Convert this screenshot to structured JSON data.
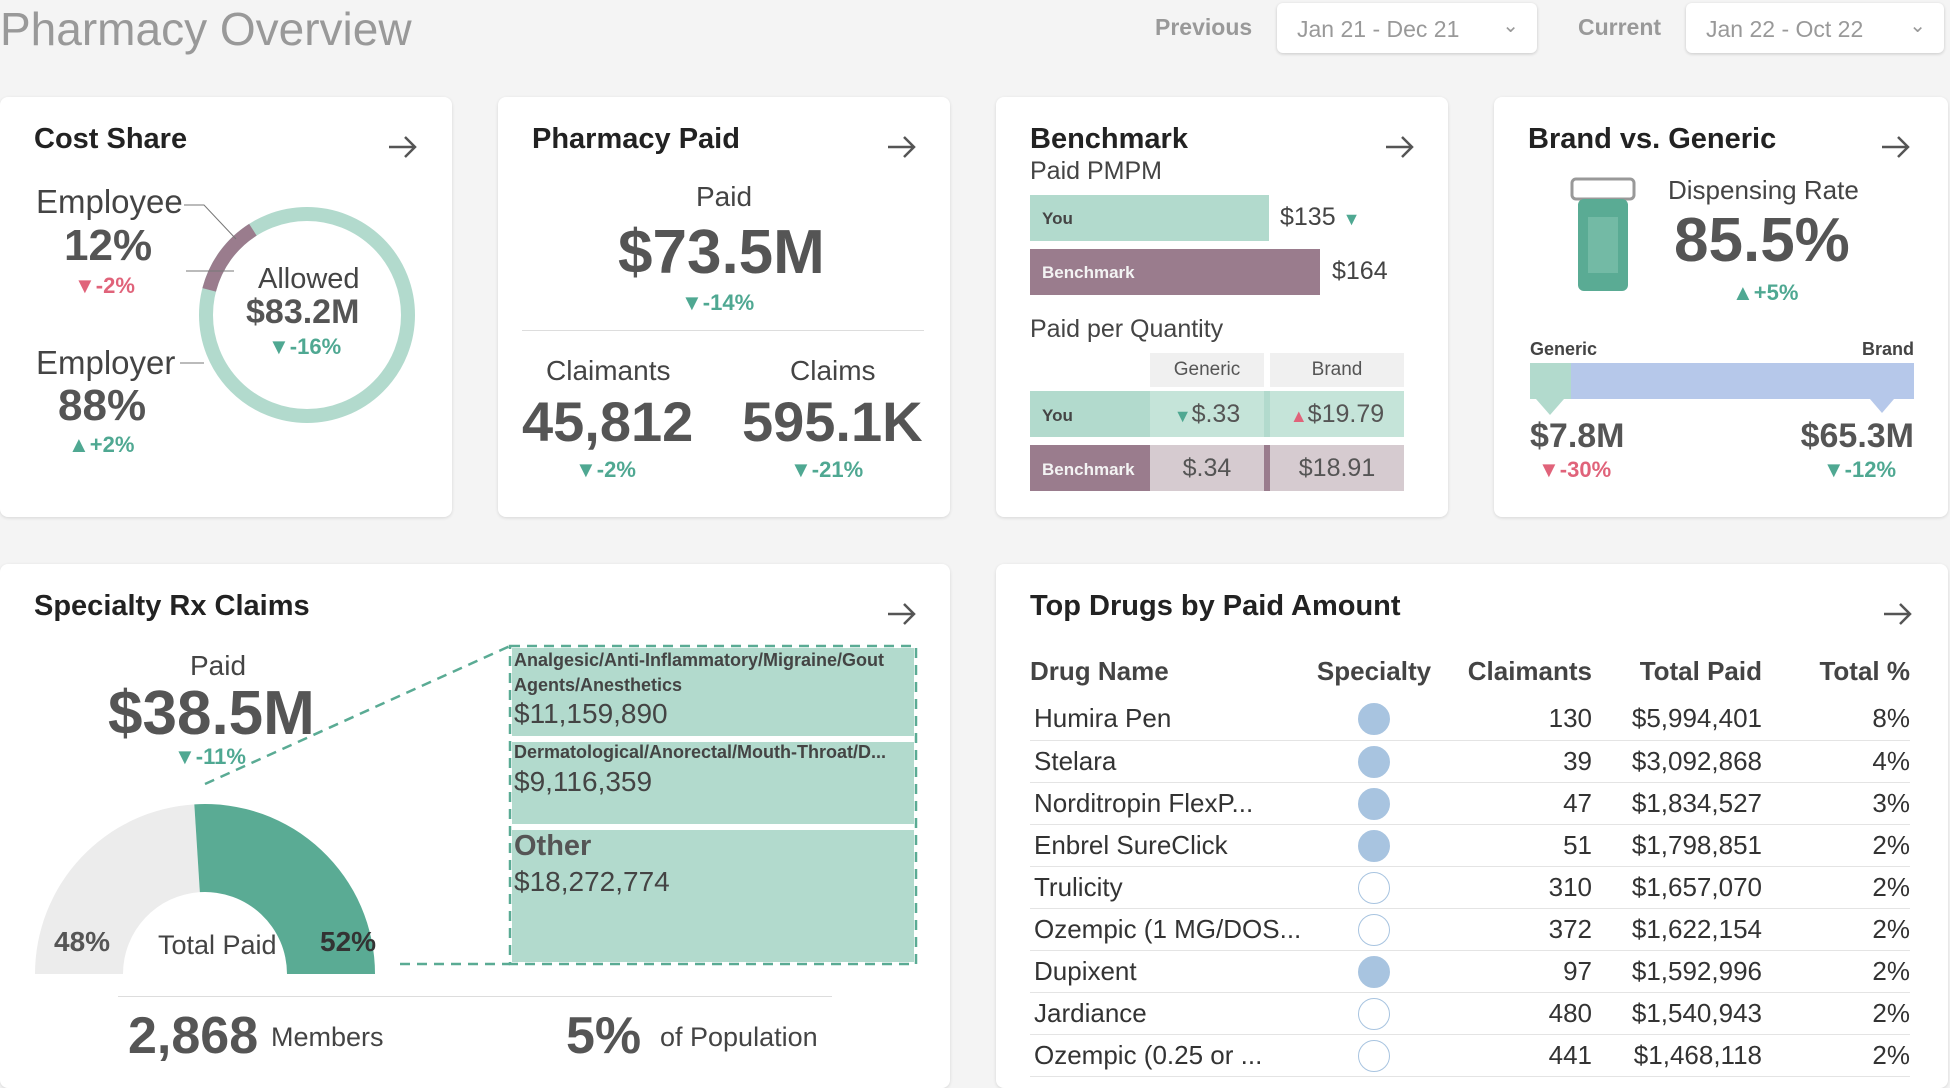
{
  "page": {
    "title": "Pharmacy Overview",
    "previous_label": "Previous",
    "previous_range": "Jan 21 - Dec 21",
    "current_label": "Current",
    "current_range": "Jan 22 - Oct 22"
  },
  "colors": {
    "teal": "#b2dacd",
    "teal_dark": "#5aab94",
    "mauve": "#9a7c8d",
    "blue_bar": "#b6c8ea",
    "positive": "#4fa892",
    "negative": "#e0637a"
  },
  "cost_share": {
    "title": "Cost Share",
    "employee_label": "Employee",
    "employee_pct": "12%",
    "employee_change": "-2%",
    "employer_label": "Employer",
    "employer_pct": "88%",
    "employer_change": "+2%",
    "allowed_label": "Allowed",
    "allowed_value": "$83.2M",
    "allowed_change": "-16%",
    "employee_share": 0.12
  },
  "pharmacy_paid": {
    "title": "Pharmacy Paid",
    "paid_label": "Paid",
    "paid_value": "$73.5M",
    "paid_change": "-14%",
    "claimants_label": "Claimants",
    "claimants_value": "45,812",
    "claimants_change": "-2%",
    "claims_label": "Claims",
    "claims_value": "595.1K",
    "claims_change": "-21%"
  },
  "benchmark": {
    "title": "Benchmark",
    "subtitle": "Paid PMPM",
    "you_label": "You",
    "you_value": "$135",
    "you_amount": 135,
    "benchmark_label": "Benchmark",
    "benchmark_value": "$164",
    "benchmark_amount": 164,
    "ppq_title": "Paid per Quantity",
    "col_generic": "Generic",
    "col_brand": "Brand",
    "you_generic": "$.33",
    "you_brand": "$19.79",
    "bench_generic": "$.34",
    "bench_brand": "$18.91"
  },
  "brand_generic": {
    "title": "Brand vs. Generic",
    "rate_label": "Dispensing Rate",
    "rate_value": "85.5%",
    "rate_change": "+5%",
    "generic_label": "Generic",
    "brand_label": "Brand",
    "generic_value": "$7.8M",
    "generic_change": "-30%",
    "brand_value": "$65.3M",
    "brand_change": "-12%",
    "generic_share": 0.107
  },
  "specialty": {
    "title": "Specialty Rx Claims",
    "paid_label": "Paid",
    "paid_value": "$38.5M",
    "paid_change": "-11%",
    "left_pct": "48%",
    "right_pct": "52%",
    "gauge_label": "Total Paid",
    "specialty_share": 0.52,
    "members_value": "2,868",
    "members_label": "Members",
    "population_value": "5%",
    "population_label": "of Population",
    "breakdown": [
      {
        "category": "Analgesic/Anti-Inflammatory/Migraine/Gout Agents/Anesthetics",
        "value": "$11,159,890",
        "amount": 11159890
      },
      {
        "category": "Dermatological/Anorectal/Mouth-Throat/D...",
        "value": "$9,116,359",
        "amount": 9116359
      },
      {
        "category": "Other",
        "value": "$18,272,774",
        "amount": 18272774
      }
    ]
  },
  "top_drugs": {
    "title": "Top Drugs by Paid Amount",
    "columns": [
      "Drug Name",
      "Specialty",
      "Claimants",
      "Total Paid",
      "Total %"
    ],
    "rows": [
      {
        "name": "Humira Pen",
        "specialty": true,
        "claimants": "130",
        "total_paid": "$5,994,401",
        "pct": "8%"
      },
      {
        "name": "Stelara",
        "specialty": true,
        "claimants": "39",
        "total_paid": "$3,092,868",
        "pct": "4%"
      },
      {
        "name": "Norditropin FlexP...",
        "specialty": true,
        "claimants": "47",
        "total_paid": "$1,834,527",
        "pct": "3%"
      },
      {
        "name": "Enbrel SureClick",
        "specialty": true,
        "claimants": "51",
        "total_paid": "$1,798,851",
        "pct": "2%"
      },
      {
        "name": "Trulicity",
        "specialty": false,
        "claimants": "310",
        "total_paid": "$1,657,070",
        "pct": "2%"
      },
      {
        "name": "Ozempic (1 MG/DOS...",
        "specialty": false,
        "claimants": "372",
        "total_paid": "$1,622,154",
        "pct": "2%"
      },
      {
        "name": "Dupixent",
        "specialty": true,
        "claimants": "97",
        "total_paid": "$1,592,996",
        "pct": "2%"
      },
      {
        "name": "Jardiance",
        "specialty": false,
        "claimants": "480",
        "total_paid": "$1,540,943",
        "pct": "2%"
      },
      {
        "name": "Ozempic (0.25 or ...",
        "specialty": false,
        "claimants": "441",
        "total_paid": "$1,468,118",
        "pct": "2%"
      }
    ]
  }
}
